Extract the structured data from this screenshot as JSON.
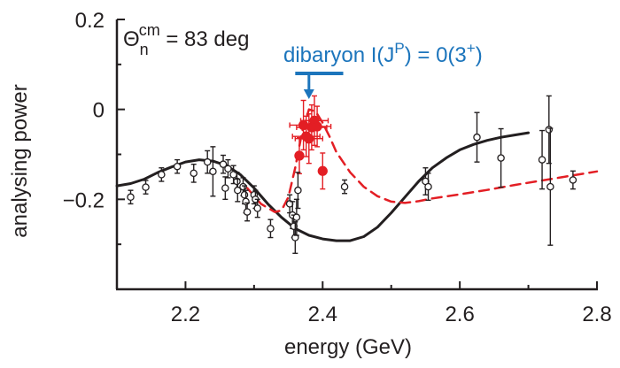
{
  "chart_data": {
    "type": "scatter",
    "xlabel": "energy (GeV)",
    "ylabel": "analysing power",
    "xlim": [
      2.1,
      2.8
    ],
    "ylim": [
      -0.4,
      0.2
    ],
    "x_ticks": [
      2.2,
      2.4,
      2.6,
      2.8
    ],
    "x_tick_labels": [
      "2.2",
      "2.4",
      "2.6",
      "2.8"
    ],
    "y_ticks": [
      0.2,
      0,
      -0.2
    ],
    "y_tick_labels": [
      "0.2",
      "0",
      "−0.2"
    ],
    "grid": false,
    "annotations": {
      "theta": {
        "symbol": "Θ",
        "sub": "n",
        "sup": "cm",
        "rest": " = 83 deg"
      },
      "dibaryon": {
        "prefix": "dibaryon  I(J",
        "sup1": "P",
        "middle": ") = 0(3",
        "sup2": "+",
        "suffix": ")",
        "mark_x": 2.38,
        "mark_range": [
          2.36,
          2.43
        ],
        "color": "#1c75bc"
      }
    },
    "colors": {
      "axis": "#231f20",
      "curve_solid": "#231f20",
      "curve_dashed": "#e31e24",
      "new_data": "#e31e24",
      "old_data": "#231f20"
    },
    "series": [
      {
        "style": "line-solid",
        "x": [
          2.1,
          2.12,
          2.14,
          2.16,
          2.18,
          2.2,
          2.22,
          2.24,
          2.26,
          2.28,
          2.3,
          2.32,
          2.34,
          2.36,
          2.38,
          2.4,
          2.42,
          2.44,
          2.46,
          2.48,
          2.5,
          2.52,
          2.54,
          2.56,
          2.58,
          2.6,
          2.62,
          2.64,
          2.66,
          2.68,
          2.7
        ],
        "y": [
          -0.17,
          -0.165,
          -0.155,
          -0.14,
          -0.128,
          -0.117,
          -0.112,
          -0.115,
          -0.125,
          -0.145,
          -0.175,
          -0.21,
          -0.24,
          -0.265,
          -0.28,
          -0.288,
          -0.292,
          -0.292,
          -0.283,
          -0.262,
          -0.23,
          -0.195,
          -0.16,
          -0.13,
          -0.108,
          -0.09,
          -0.078,
          -0.069,
          -0.062,
          -0.057,
          -0.052
        ]
      },
      {
        "style": "line-dashed",
        "x": [
          2.29,
          2.31,
          2.33,
          2.34,
          2.35,
          2.36,
          2.37,
          2.38,
          2.39,
          2.4,
          2.41,
          2.42,
          2.44,
          2.46,
          2.48,
          2.5,
          2.52,
          2.54,
          2.56,
          2.6,
          2.64,
          2.68,
          2.72,
          2.76,
          2.8
        ],
        "y": [
          -0.175,
          -0.21,
          -0.228,
          -0.225,
          -0.195,
          -0.13,
          -0.05,
          0.0,
          -0.005,
          -0.03,
          -0.06,
          -0.095,
          -0.14,
          -0.172,
          -0.193,
          -0.205,
          -0.208,
          -0.204,
          -0.198,
          -0.189,
          -0.179,
          -0.168,
          -0.158,
          -0.148,
          -0.138
        ]
      },
      {
        "style": "markers-filled",
        "points": [
          {
            "x": 2.366,
            "y": -0.103,
            "yerr": 0.04,
            "xerr": 0.0
          },
          {
            "x": 2.372,
            "y": -0.035,
            "yerr": 0.055,
            "xerr": 0.02
          },
          {
            "x": 2.376,
            "y": -0.06,
            "yerr": 0.045,
            "xerr": 0.02
          },
          {
            "x": 2.38,
            "y": -0.065,
            "yerr": 0.055,
            "xerr": 0.02
          },
          {
            "x": 2.384,
            "y": -0.04,
            "yerr": 0.05,
            "xerr": 0.022
          },
          {
            "x": 2.388,
            "y": -0.025,
            "yerr": 0.055,
            "xerr": 0.02
          },
          {
            "x": 2.392,
            "y": -0.038,
            "yerr": 0.045,
            "xerr": 0.02
          },
          {
            "x": 2.4,
            "y": -0.137,
            "yerr": 0.04,
            "xerr": 0.0
          }
        ]
      },
      {
        "style": "markers-open",
        "points": [
          {
            "x": 2.12,
            "y": -0.195,
            "yerr": 0.015
          },
          {
            "x": 2.142,
            "y": -0.173,
            "yerr": 0.015
          },
          {
            "x": 2.165,
            "y": -0.145,
            "yerr": 0.015
          },
          {
            "x": 2.188,
            "y": -0.127,
            "yerr": 0.015
          },
          {
            "x": 2.212,
            "y": -0.142,
            "yerr": 0.02
          },
          {
            "x": 2.232,
            "y": -0.117,
            "yerr": 0.025
          },
          {
            "x": 2.24,
            "y": -0.138,
            "yerr": 0.055
          },
          {
            "x": 2.255,
            "y": -0.122,
            "yerr": 0.02
          },
          {
            "x": 2.262,
            "y": -0.132,
            "yerr": 0.02
          },
          {
            "x": 2.258,
            "y": -0.175,
            "yerr": 0.025
          },
          {
            "x": 2.27,
            "y": -0.145,
            "yerr": 0.02
          },
          {
            "x": 2.275,
            "y": -0.16,
            "yerr": 0.02
          },
          {
            "x": 2.276,
            "y": -0.18,
            "yerr": 0.025
          },
          {
            "x": 2.284,
            "y": -0.172,
            "yerr": 0.02
          },
          {
            "x": 2.286,
            "y": -0.19,
            "yerr": 0.02
          },
          {
            "x": 2.288,
            "y": -0.205,
            "yerr": 0.025
          },
          {
            "x": 2.29,
            "y": -0.228,
            "yerr": 0.02
          },
          {
            "x": 2.3,
            "y": -0.19,
            "yerr": 0.02
          },
          {
            "x": 2.302,
            "y": -0.2,
            "yerr": 0.02
          },
          {
            "x": 2.305,
            "y": -0.22,
            "yerr": 0.02
          },
          {
            "x": 2.324,
            "y": -0.265,
            "yerr": 0.02
          },
          {
            "x": 2.352,
            "y": -0.21,
            "yerr": 0.02
          },
          {
            "x": 2.356,
            "y": -0.235,
            "yerr": 0.03
          },
          {
            "x": 2.358,
            "y": -0.26,
            "yerr": 0.025
          },
          {
            "x": 2.36,
            "y": -0.285,
            "yerr": 0.035
          },
          {
            "x": 2.362,
            "y": -0.24,
            "yerr": 0.04
          },
          {
            "x": 2.364,
            "y": -0.18,
            "yerr": 0.04
          },
          {
            "x": 2.432,
            "y": -0.172,
            "yerr": 0.015
          },
          {
            "x": 2.55,
            "y": -0.16,
            "yerr": 0.03
          },
          {
            "x": 2.554,
            "y": -0.172,
            "yerr": 0.03
          },
          {
            "x": 2.625,
            "y": -0.062,
            "yerr": 0.055
          },
          {
            "x": 2.66,
            "y": -0.108,
            "yerr": 0.065
          },
          {
            "x": 2.72,
            "y": -0.112,
            "yerr": 0.065
          },
          {
            "x": 2.73,
            "y": -0.045,
            "yerr": 0.075
          },
          {
            "x": 2.732,
            "y": -0.172,
            "yerr": 0.13
          },
          {
            "x": 2.765,
            "y": -0.157,
            "yerr": 0.02
          }
        ]
      }
    ]
  }
}
